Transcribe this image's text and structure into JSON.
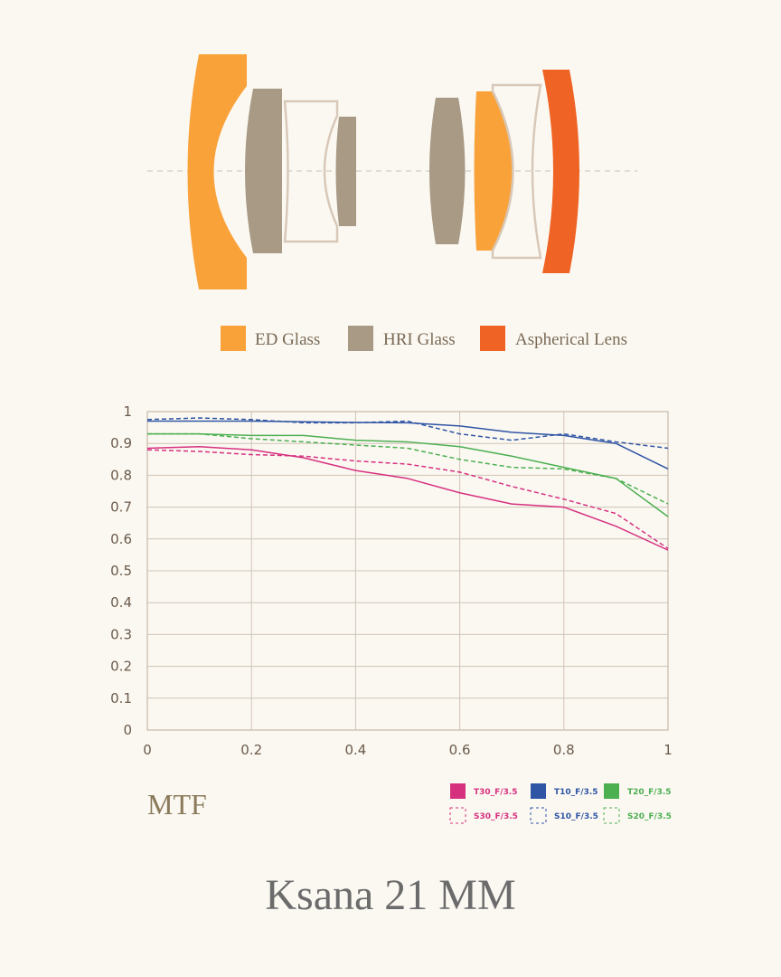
{
  "lens_legend": [
    "ED Glass",
    "HRI Glass",
    "Aspherical Lens"
  ],
  "chart_data": {
    "type": "line",
    "title": "MTF",
    "x": [
      0,
      0.1,
      0.2,
      0.3,
      0.4,
      0.5,
      0.6,
      0.7,
      0.8,
      0.9,
      1
    ],
    "series": [
      {
        "name": "T30_F/3.5",
        "color": "#d6317f",
        "dash": false,
        "values": [
          0.885,
          0.89,
          0.88,
          0.855,
          0.815,
          0.79,
          0.745,
          0.71,
          0.7,
          0.64,
          0.565
        ]
      },
      {
        "name": "T10_F/3.5",
        "color": "#2f55a4",
        "dash": false,
        "values": [
          0.97,
          0.97,
          0.97,
          0.968,
          0.966,
          0.965,
          0.955,
          0.935,
          0.925,
          0.9,
          0.82
        ]
      },
      {
        "name": "T20_F/3.5",
        "color": "#4caf50",
        "dash": false,
        "values": [
          0.93,
          0.93,
          0.925,
          0.925,
          0.91,
          0.905,
          0.89,
          0.86,
          0.825,
          0.79,
          0.67
        ]
      },
      {
        "name": "S30_F/3.5",
        "color": "#d6317f",
        "dash": true,
        "values": [
          0.88,
          0.875,
          0.865,
          0.86,
          0.845,
          0.835,
          0.81,
          0.765,
          0.725,
          0.68,
          0.57
        ]
      },
      {
        "name": "S10_F/3.5",
        "color": "#2f55a4",
        "dash": true,
        "values": [
          0.975,
          0.98,
          0.975,
          0.965,
          0.965,
          0.97,
          0.93,
          0.91,
          0.93,
          0.905,
          0.885
        ]
      },
      {
        "name": "S20_F/3.5",
        "color": "#4caf50",
        "dash": true,
        "values": [
          0.93,
          0.93,
          0.915,
          0.905,
          0.895,
          0.885,
          0.85,
          0.825,
          0.82,
          0.79,
          0.71
        ]
      }
    ],
    "xlim": [
      0,
      1
    ],
    "xticks": [
      0,
      0.2,
      0.4,
      0.6,
      0.8,
      1
    ],
    "ylim": [
      0,
      1
    ],
    "yticks": [
      0,
      0.1,
      0.2,
      0.3,
      0.4,
      0.5,
      0.6,
      0.7,
      0.8,
      0.9,
      1
    ],
    "grid": true
  },
  "title": "Ksana 21 MM"
}
